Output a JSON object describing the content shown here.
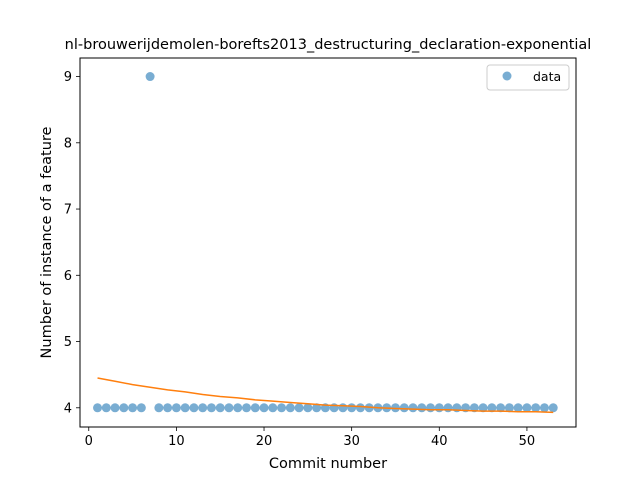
{
  "chart_data": {
    "type": "scatter",
    "title": "nl-brouwerijdemolen-borefts2013_destructuring_declaration-exponential",
    "xlabel": "Commit number",
    "ylabel": "Number of instance of a feature",
    "xlim": [
      -1,
      55.6
    ],
    "ylim": [
      3.71,
      9.28
    ],
    "xticks": [
      0,
      10,
      20,
      30,
      40,
      50
    ],
    "yticks": [
      4,
      5,
      6,
      7,
      8,
      9
    ],
    "grid": false,
    "legend_position": "top-right",
    "series": [
      {
        "name": "data",
        "kind": "points",
        "color": "#1f77b4",
        "x": [
          1,
          2,
          3,
          4,
          5,
          6,
          7,
          8,
          9,
          10,
          11,
          12,
          13,
          14,
          15,
          16,
          17,
          18,
          19,
          20,
          21,
          22,
          23,
          24,
          25,
          26,
          27,
          28,
          29,
          30,
          31,
          32,
          33,
          34,
          35,
          36,
          37,
          38,
          39,
          40,
          41,
          42,
          43,
          44,
          45,
          46,
          47,
          48,
          49,
          50,
          51,
          52,
          53
        ],
        "y": [
          4,
          4,
          4,
          4,
          4,
          4,
          9,
          4,
          4,
          4,
          4,
          4,
          4,
          4,
          4,
          4,
          4,
          4,
          4,
          4,
          4,
          4,
          4,
          4,
          4,
          4,
          4,
          4,
          4,
          4,
          4,
          4,
          4,
          4,
          4,
          4,
          4,
          4,
          4,
          4,
          4,
          4,
          4,
          4,
          4,
          4,
          4,
          4,
          4,
          4,
          4,
          4,
          4
        ]
      },
      {
        "kind": "fit-line",
        "color": "#ff7f0e",
        "x": [
          1,
          3,
          5,
          7,
          9,
          11,
          13,
          15,
          17,
          19,
          21,
          23,
          25,
          27,
          29,
          31,
          33,
          35,
          37,
          39,
          41,
          43,
          45,
          47,
          49,
          51,
          53
        ],
        "y": [
          4.45,
          4.4,
          4.35,
          4.31,
          4.27,
          4.24,
          4.2,
          4.17,
          4.15,
          4.12,
          4.1,
          4.08,
          4.06,
          4.04,
          4.03,
          4.02,
          4.0,
          3.99,
          3.98,
          3.97,
          3.97,
          3.96,
          3.95,
          3.95,
          3.94,
          3.94,
          3.93
        ]
      }
    ]
  }
}
